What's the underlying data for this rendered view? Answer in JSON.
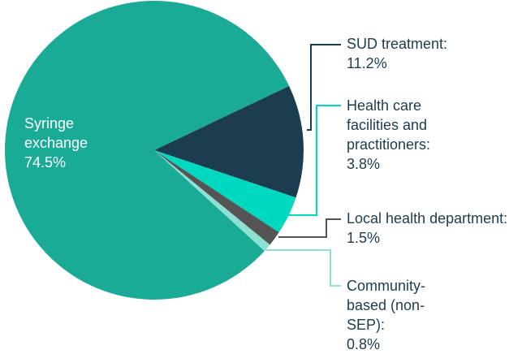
{
  "chart_data": {
    "type": "pie",
    "categories": [
      "Syringe exchange",
      "SUD treatment:",
      "Health care facilities and practitioners:",
      "Local health department:",
      "Community-based (non-SEP):"
    ],
    "values": [
      74.5,
      11.2,
      3.8,
      1.5,
      0.8
    ],
    "value_labels": [
      "74.5%",
      "11.2%",
      "3.8%",
      "1.5%",
      "0.8%"
    ],
    "colors": [
      "#1aab97",
      "#1c3d50",
      "#00d9bf",
      "#555555",
      "#8de0d4"
    ]
  }
}
